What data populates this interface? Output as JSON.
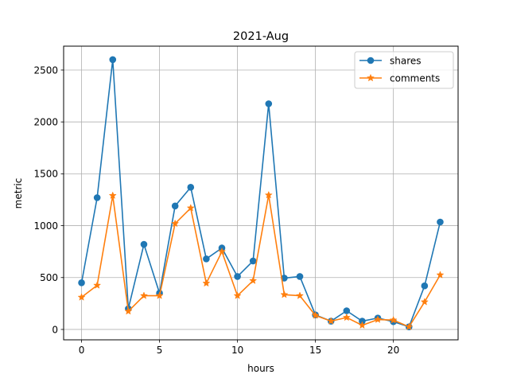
{
  "chart_data": {
    "type": "line",
    "title": "2021-Aug",
    "xlabel": "hours",
    "ylabel": "metric",
    "x": [
      0,
      1,
      2,
      3,
      4,
      5,
      6,
      7,
      8,
      9,
      10,
      11,
      12,
      13,
      14,
      15,
      16,
      17,
      18,
      19,
      20,
      21,
      22,
      23
    ],
    "xlim": [
      -1.15,
      24.15
    ],
    "ylim": [
      -100,
      2730
    ],
    "xticks": [
      0,
      5,
      10,
      15,
      20
    ],
    "yticks": [
      0,
      500,
      1000,
      1500,
      2000,
      2500
    ],
    "grid": true,
    "legend_position": "upper right",
    "series": [
      {
        "name": "shares",
        "color": "#1f77b4",
        "marker": "circle",
        "values": [
          450,
          1270,
          2600,
          200,
          820,
          350,
          1190,
          1370,
          680,
          785,
          510,
          660,
          2175,
          495,
          510,
          140,
          80,
          180,
          80,
          110,
          75,
          25,
          420,
          1035
        ]
      },
      {
        "name": "comments",
        "color": "#ff7f0e",
        "marker": "star",
        "values": [
          310,
          425,
          1290,
          175,
          325,
          325,
          1020,
          1170,
          445,
          750,
          325,
          470,
          1295,
          335,
          325,
          135,
          80,
          115,
          40,
          95,
          90,
          25,
          265,
          525
        ]
      }
    ]
  }
}
